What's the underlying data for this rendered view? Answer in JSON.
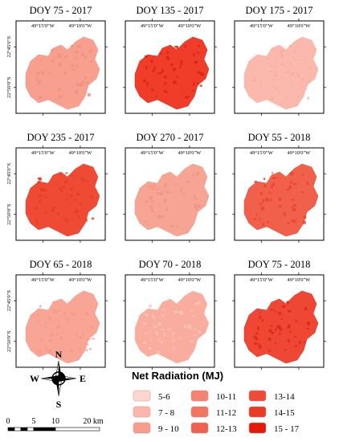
{
  "panels": [
    {
      "title": "DOY 75 - 2017",
      "level": "9 - 10",
      "color": "#f7a08f",
      "speckle": "#f48c7a",
      "lon_labels": [
        "49°15'0\"W",
        "49°10'0\"W"
      ],
      "lat_labels": [
        "22°45'0\"S",
        "22°50'0\"S"
      ]
    },
    {
      "title": "DOY 135 - 2017",
      "level": "13-14",
      "color": "#ef3d2a",
      "speckle": "#d91f10",
      "lon_labels": [
        "49°15'0\"W",
        "49°10'0\"W"
      ],
      "lat_labels": []
    },
    {
      "title": "DOY 175 - 2017",
      "level": "7 - 8",
      "color": "#fbb9ad",
      "speckle": "#f9ab9d",
      "lon_labels": [
        "49°15'0\"W",
        "49°10'0\"W"
      ],
      "lat_labels": []
    },
    {
      "title": "DOY 235 - 2017",
      "level": "13-14",
      "color": "#ef4a34",
      "speckle": "#e43a26",
      "lon_labels": [
        "49°15'0\"W",
        "49°10'0\"W"
      ],
      "lat_labels": [
        "22°45'0\"S",
        "22°50'0\"S"
      ]
    },
    {
      "title": "DOY 270 - 2017",
      "level": "9 - 10",
      "color": "#f6a594",
      "speckle": "#f29282",
      "lon_labels": [
        "49°15'0\"W",
        "49°10'0\"W"
      ],
      "lat_labels": []
    },
    {
      "title": "DOY 55 - 2018",
      "level": "12-13",
      "color": "#f1604b",
      "speckle": "#e9412d",
      "lon_labels": [
        "49°15'0\"W",
        "49°10'0\"W"
      ],
      "lat_labels": []
    },
    {
      "title": "DOY 65 - 2018",
      "level": "9 - 10",
      "color": "#f8a595",
      "speckle": "#f59685",
      "lon_labels": [
        "49°15'0\"W",
        "49°10'0\"W"
      ],
      "lat_labels": [
        "22°45'0\"S",
        "22°50'0\"S"
      ]
    },
    {
      "title": "DOY 70 - 2018",
      "level": "9 - 10",
      "color": "#f8ad9e",
      "speckle": "#fbc7bd",
      "lon_labels": [
        "49°15'0\"W",
        "49°10'0\"W"
      ],
      "lat_labels": []
    },
    {
      "title": "DOY 75 - 2018",
      "level": "13-14",
      "color": "#ee4733",
      "speckle": "#d92612",
      "lon_labels": [
        "49°15'0\"W",
        "49°10'0\"W"
      ],
      "lat_labels": []
    }
  ],
  "compass": {
    "north": "N",
    "south": "S",
    "east": "E",
    "west": "W"
  },
  "scale_bar": {
    "ticks": [
      "0",
      "5",
      "10",
      "20 km"
    ]
  },
  "legend": {
    "title": "Net Radiation (MJ)",
    "classes": [
      {
        "label": "5-6",
        "color": "#fcd6d0"
      },
      {
        "label": "7 - 8",
        "color": "#fbb7ab"
      },
      {
        "label": "9 - 10",
        "color": "#f79d8b"
      },
      {
        "label": "10-11",
        "color": "#f48371"
      },
      {
        "label": "11-12",
        "color": "#f27561"
      },
      {
        "label": "12-13",
        "color": "#f06250"
      },
      {
        "label": "13-14",
        "color": "#ee4c37"
      },
      {
        "label": "14-15",
        "color": "#ea3a24"
      },
      {
        "label": "15 - 17",
        "color": "#e31a0b"
      }
    ]
  }
}
